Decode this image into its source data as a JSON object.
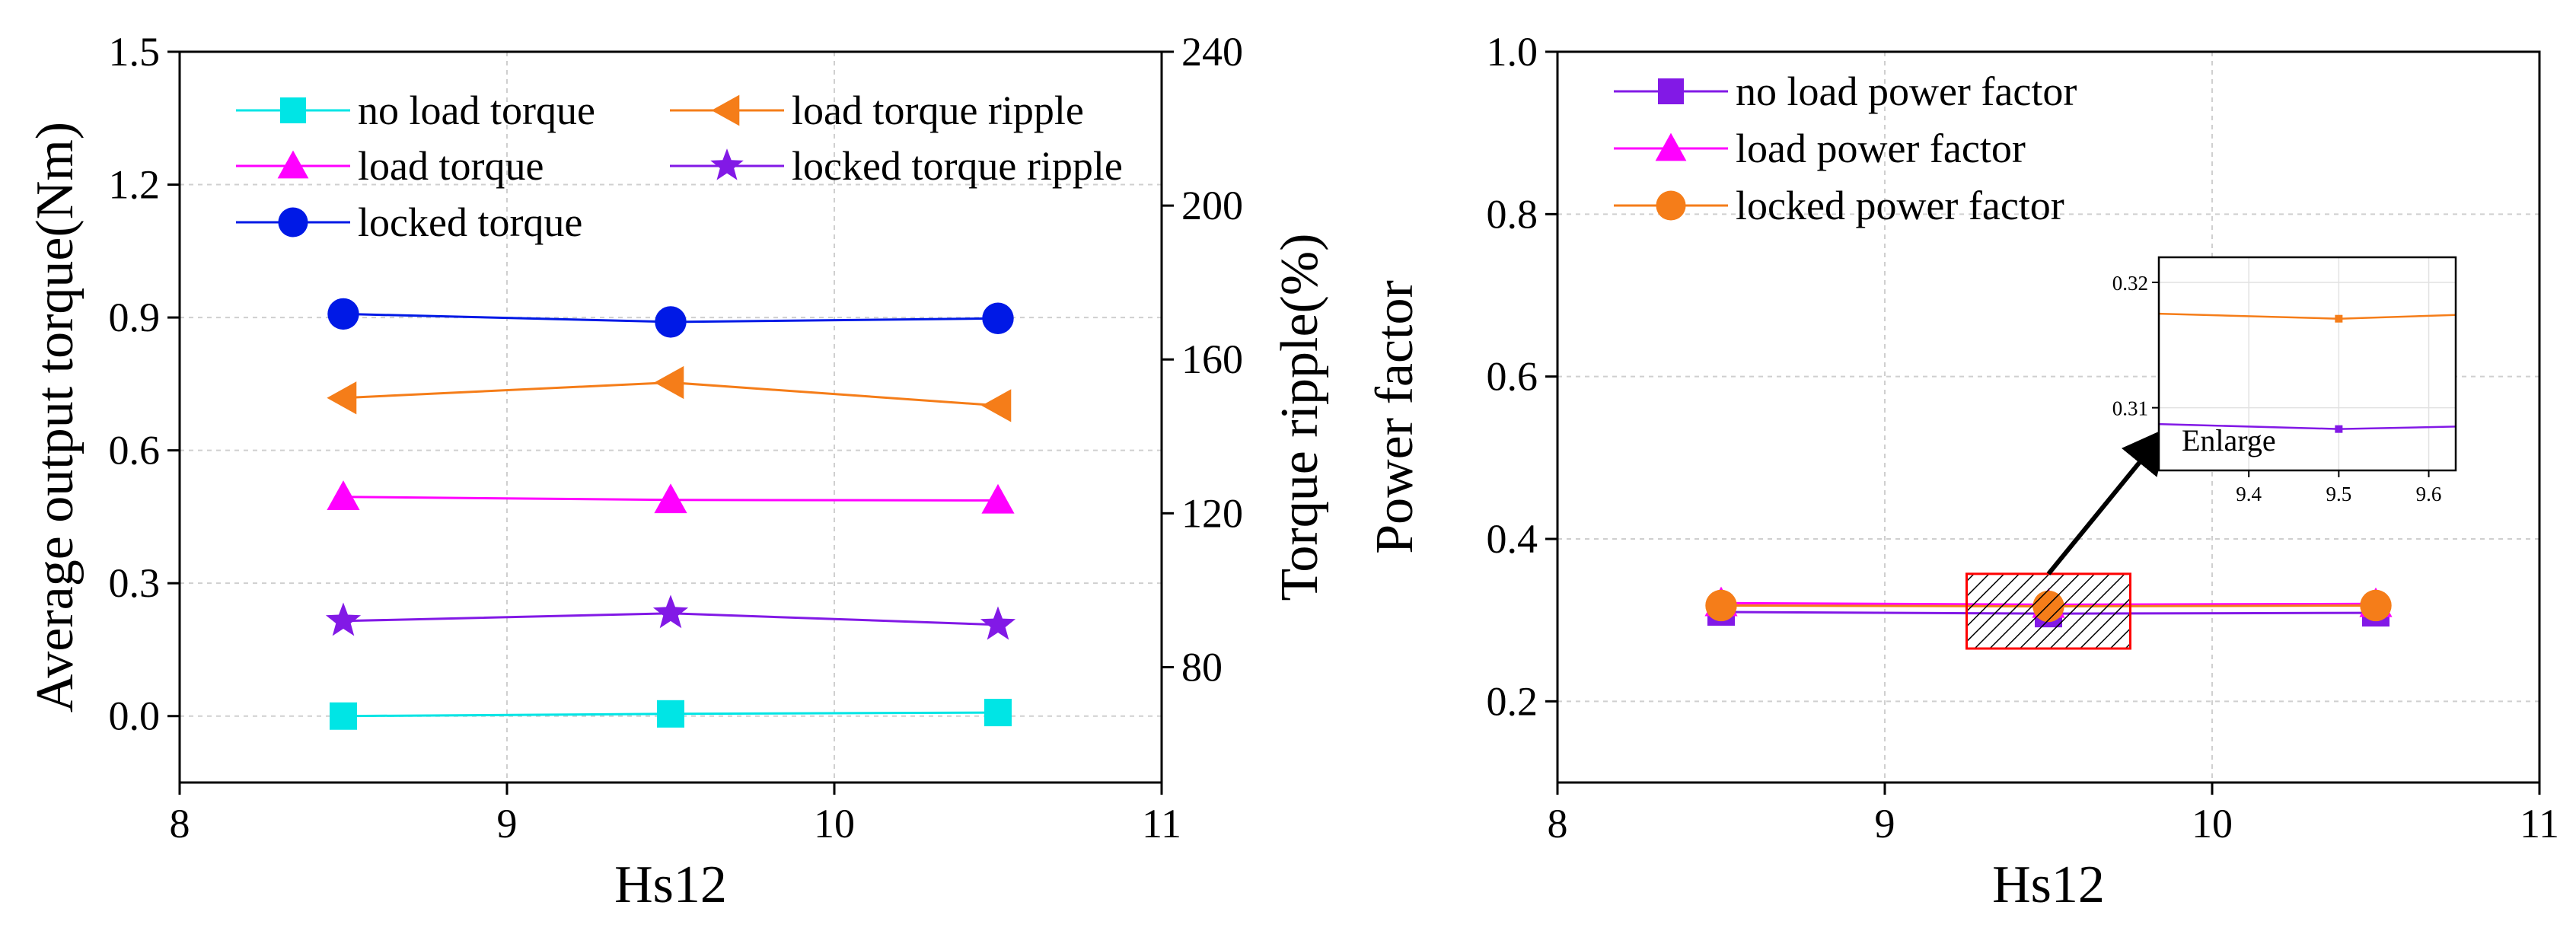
{
  "chart_data": [
    {
      "type": "line",
      "x": [
        8.5,
        9.5,
        10.5
      ],
      "xlabel": "Hs12",
      "ylabel": "Average output torque(Nm)",
      "y2label": "Torque ripple(%)",
      "xlim": [
        8,
        11
      ],
      "ylim": [
        -0.15,
        1.5
      ],
      "y2lim": [
        50,
        240
      ],
      "xticks": [
        "8",
        "9",
        "10",
        "11"
      ],
      "yticks": [
        "0.0",
        "0.3",
        "0.6",
        "0.9",
        "1.2",
        "1.5"
      ],
      "y2ticks": [
        "80",
        "120",
        "160",
        "200",
        "240"
      ],
      "series": [
        {
          "name": "no load torque",
          "axis": "left",
          "marker": "square",
          "color": "#00e5e5",
          "values": [
            0.0,
            0.005,
            0.008
          ]
        },
        {
          "name": "load torque",
          "axis": "left",
          "marker": "triangle-up",
          "color": "#ff00ff",
          "values": [
            0.495,
            0.488,
            0.487
          ]
        },
        {
          "name": "locked torque",
          "axis": "left",
          "marker": "circle",
          "color": "#0019e6",
          "values": [
            0.908,
            0.89,
            0.898
          ]
        },
        {
          "name": "load torque ripple",
          "axis": "right",
          "marker": "triangle-left",
          "color": "#f57d19",
          "values": [
            150,
            154,
            148
          ]
        },
        {
          "name": "locked torque ripple",
          "axis": "right",
          "marker": "star",
          "color": "#8219e6",
          "values": [
            92,
            94,
            91
          ]
        }
      ]
    },
    {
      "type": "line",
      "x": [
        8.5,
        9.5,
        10.5
      ],
      "xlabel": "Hs12",
      "ylabel": "Power factor",
      "xlim": [
        8,
        11
      ],
      "ylim": [
        0.1,
        1.0
      ],
      "xticks": [
        "8",
        "9",
        "10",
        "11"
      ],
      "yticks": [
        "0.2",
        "0.4",
        "0.6",
        "0.8",
        "1.0"
      ],
      "series": [
        {
          "name": "no load power factor",
          "marker": "square",
          "color": "#8219e6",
          "values": [
            0.31,
            0.308,
            0.309
          ]
        },
        {
          "name": "load power factor",
          "marker": "triangle-up",
          "color": "#ff00ff",
          "values": [
            0.321,
            0.319,
            0.32
          ]
        },
        {
          "name": "locked power factor",
          "marker": "circle",
          "color": "#f57d19",
          "values": [
            0.318,
            0.317,
            0.318
          ]
        }
      ],
      "annotation": "Enlarge",
      "zoom_box": {
        "x": [
          9.25,
          9.75
        ],
        "y": [
          0.265,
          0.357
        ]
      },
      "inset": {
        "xlim": [
          9.3,
          9.63
        ],
        "ylim": [
          0.305,
          0.322
        ],
        "xticks": [
          "9.4",
          "9.5",
          "9.6"
        ],
        "yticks": [
          "0.31",
          "0.32"
        ],
        "x": [
          9.3,
          9.5,
          9.63
        ],
        "series": [
          {
            "name": "locked power factor",
            "color": "#f57d19",
            "values": [
              0.3175,
              0.3171,
              0.3174
            ]
          },
          {
            "name": "no load power factor",
            "color": "#8219e6",
            "values": [
              0.3087,
              0.3083,
              0.3085
            ]
          }
        ]
      }
    }
  ]
}
